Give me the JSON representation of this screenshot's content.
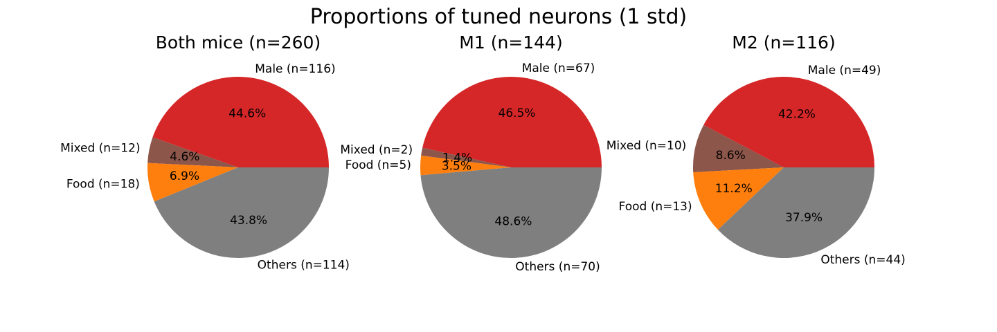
{
  "title": "Proportions of tuned neurons (1 std)",
  "colors": {
    "Male": "#d62728",
    "Mixed": "#8c564b",
    "Food": "#ff7f0e",
    "Others": "#7f7f7f"
  },
  "chart_data": [
    {
      "type": "pie",
      "title": "Both mice (n=260)",
      "slices": [
        {
          "category": "Male",
          "label": "Male (n=116)",
          "value": 116,
          "percent_label": "44.6%"
        },
        {
          "category": "Mixed",
          "label": "Mixed (n=12)",
          "value": 12,
          "percent_label": "4.6%"
        },
        {
          "category": "Food",
          "label": "Food (n=18)",
          "value": 18,
          "percent_label": "6.9%"
        },
        {
          "category": "Others",
          "label": "Others (n=114)",
          "value": 114,
          "percent_label": "43.8%"
        }
      ]
    },
    {
      "type": "pie",
      "title": "M1 (n=144)",
      "slices": [
        {
          "category": "Male",
          "label": "Male (n=67)",
          "value": 67,
          "percent_label": "46.5%"
        },
        {
          "category": "Mixed",
          "label": "Mixed (n=2)",
          "value": 2,
          "percent_label": "1.4%"
        },
        {
          "category": "Food",
          "label": "Food (n=5)",
          "value": 5,
          "percent_label": "3.5%"
        },
        {
          "category": "Others",
          "label": "Others (n=70)",
          "value": 70,
          "percent_label": "48.6%"
        }
      ]
    },
    {
      "type": "pie",
      "title": "M2 (n=116)",
      "slices": [
        {
          "category": "Male",
          "label": "Male (n=49)",
          "value": 49,
          "percent_label": "42.2%"
        },
        {
          "category": "Mixed",
          "label": "Mixed (n=10)",
          "value": 10,
          "percent_label": "8.6%"
        },
        {
          "category": "Food",
          "label": "Food (n=13)",
          "value": 13,
          "percent_label": "11.2%"
        },
        {
          "category": "Others",
          "label": "Others (n=44)",
          "value": 44,
          "percent_label": "37.9%"
        }
      ]
    }
  ]
}
